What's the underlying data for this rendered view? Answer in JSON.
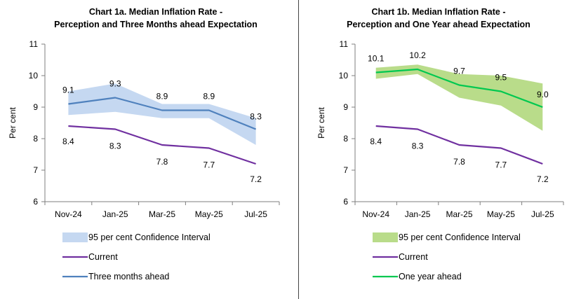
{
  "chart_data": [
    {
      "type": "line",
      "title_lines": [
        "Chart 1a. Median Inflation Rate -",
        "Perception and Three Months ahead Expectation"
      ],
      "xlabel": "",
      "ylabel": "Per cent",
      "ylim": [
        6,
        11
      ],
      "yticks": [
        6,
        7,
        8,
        9,
        10,
        11
      ],
      "categories": [
        "Nov-24",
        "Jan-25",
        "Mar-25",
        "May-25",
        "Jul-25"
      ],
      "band": {
        "name": "95 per cent Confidence Interval",
        "color": "#c5d8f1",
        "lower": [
          8.75,
          8.85,
          8.65,
          8.65,
          7.8
        ],
        "upper": [
          9.5,
          9.75,
          9.1,
          9.1,
          8.65
        ]
      },
      "series": [
        {
          "name": "Current",
          "color": "#7030a0",
          "values": [
            8.4,
            8.3,
            7.8,
            7.7,
            7.2
          ],
          "labels": [
            "8.4",
            "8.3",
            "7.8",
            "7.7",
            "7.2"
          ]
        },
        {
          "name": "Three months ahead",
          "color": "#4f81bd",
          "values": [
            9.1,
            9.3,
            8.9,
            8.9,
            8.3
          ],
          "labels": [
            "9.1",
            "9.3",
            "8.9",
            "8.9",
            "8.3"
          ]
        }
      ],
      "legend": [
        "95 per cent Confidence Interval",
        "Current",
        "Three months ahead"
      ]
    },
    {
      "type": "line",
      "title_lines": [
        "Chart 1b. Median Inflation Rate -",
        "Perception and One Year ahead Expectation"
      ],
      "xlabel": "",
      "ylabel": "Per cent",
      "ylim": [
        6,
        11
      ],
      "yticks": [
        6,
        7,
        8,
        9,
        10,
        11
      ],
      "categories": [
        "Nov-24",
        "Jan-25",
        "Mar-25",
        "May-25",
        "Jul-25"
      ],
      "band": {
        "name": "95 per cent Confidence Interval",
        "color": "#b9dc8a",
        "lower": [
          9.9,
          10.05,
          9.3,
          9.05,
          8.25
        ],
        "upper": [
          10.25,
          10.35,
          10.05,
          10.0,
          9.75
        ]
      },
      "series": [
        {
          "name": "Current",
          "color": "#7030a0",
          "values": [
            8.4,
            8.3,
            7.8,
            7.7,
            7.2
          ],
          "labels": [
            "8.4",
            "8.3",
            "7.8",
            "7.7",
            "7.2"
          ]
        },
        {
          "name": "One year ahead",
          "color": "#00c850",
          "values": [
            10.1,
            10.2,
            9.7,
            9.5,
            9.0
          ],
          "labels": [
            "10.1",
            "10.2",
            "9.7",
            "9.5",
            "9.0"
          ]
        }
      ],
      "legend": [
        "95 per cent Confidence Interval",
        "Current",
        "One year ahead"
      ]
    }
  ]
}
